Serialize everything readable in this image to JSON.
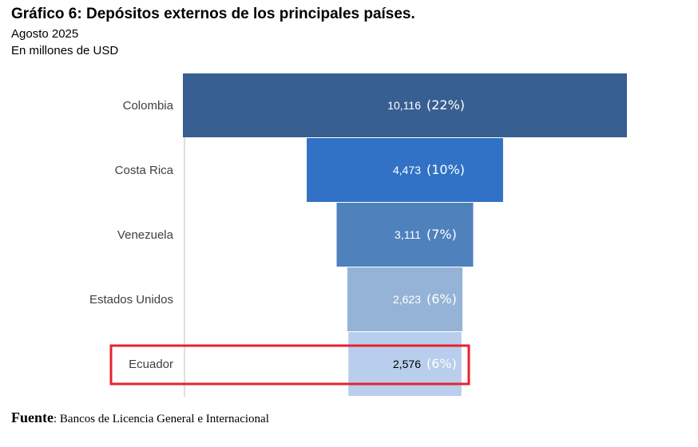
{
  "header": {
    "title": "Gráfico 6: Depósitos externos de los principales países.",
    "subtitle": "Agosto 2025",
    "unit": "En millones de USD"
  },
  "source": {
    "label": "Fuente",
    "text": ": Bancos de Licencia General e Internacional"
  },
  "chart_data": {
    "type": "bar",
    "orientation": "horizontal-funnel",
    "categories": [
      "Colombia",
      "Costa Rica",
      "Venezuela",
      "Estados Unidos",
      "Ecuador"
    ],
    "values": [
      10116,
      4473,
      3111,
      2623,
      2576
    ],
    "value_labels": [
      "10,116",
      "4,473",
      "3,111",
      "2,623",
      "2,576"
    ],
    "share_labels": [
      "(22%)",
      "(10%)",
      "(7%)",
      "(6%)",
      "(6%)"
    ],
    "colors": [
      "#375f91",
      "#3172c6",
      "#4f81bd",
      "#95b3d7",
      "#b9cdec"
    ],
    "highlight_category": "Ecuador",
    "highlight_color": "#e8222d",
    "grid": false
  }
}
